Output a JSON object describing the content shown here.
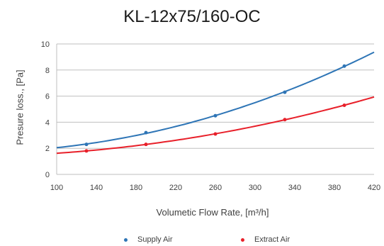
{
  "chart_data": {
    "type": "line",
    "title": "KL-12x75/160-OC",
    "xlabel": "Volumetic Flow Rate, [m³/h]",
    "ylabel": "Presure loss., [Pa]",
    "xlim": [
      100,
      420
    ],
    "ylim": [
      0,
      10
    ],
    "xticks": [
      100,
      140,
      180,
      220,
      260,
      300,
      340,
      380,
      420
    ],
    "yticks": [
      0,
      2,
      4,
      6,
      8,
      10
    ],
    "grid": "horizontal",
    "legend_position": "bottom",
    "series": [
      {
        "name": "Supply Air",
        "color": "#2e75b6",
        "x": [
          130,
          190,
          260,
          330,
          390
        ],
        "y": [
          2.3,
          3.2,
          4.5,
          6.3,
          8.3
        ]
      },
      {
        "name": "Extract Air",
        "color": "#e8202a",
        "x": [
          130,
          190,
          260,
          330,
          390
        ],
        "y": [
          1.8,
          2.3,
          3.1,
          4.2,
          5.3
        ]
      }
    ]
  }
}
